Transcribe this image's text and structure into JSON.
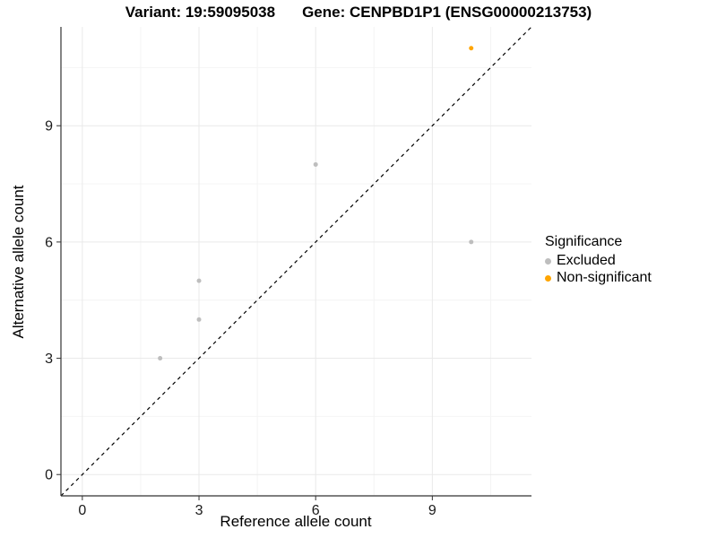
{
  "figure": {
    "title_left": "Variant: 19:59095038",
    "title_right": "Gene: CENPBD1P1 (ENSG00000213753)"
  },
  "chart_data": {
    "type": "scatter",
    "title": "Variant: 19:59095038   Gene: CENPBD1P1 (ENSG00000213753)",
    "xlabel": "Reference allele count",
    "ylabel": "Alternative allele count",
    "xlim": [
      -0.55,
      11.55
    ],
    "ylim": [
      -0.55,
      11.55
    ],
    "x_ticks": [
      0,
      3,
      6,
      9
    ],
    "y_ticks": [
      0,
      3,
      6,
      9
    ],
    "x_minor_ticks": [
      1.5,
      4.5,
      7.5,
      10.5
    ],
    "y_minor_ticks": [
      1.5,
      4.5,
      7.5,
      10.5
    ],
    "grid": true,
    "legend": {
      "title": "Significance",
      "position": "right"
    },
    "identity_line": {
      "equation": "y = x",
      "style": "dashed",
      "color": "#000000"
    },
    "series": [
      {
        "name": "Excluded",
        "color": "#BEBEBE",
        "points": [
          [
            2,
            3
          ],
          [
            3,
            4
          ],
          [
            3,
            5
          ],
          [
            6,
            8
          ],
          [
            10,
            6
          ]
        ]
      },
      {
        "name": "Non-significant",
        "color": "#FFA500",
        "points": [
          [
            10,
            11
          ]
        ]
      }
    ]
  },
  "style_colors": {
    "axis_line": "#333333",
    "tick_label": "#1a1a1a",
    "grid_major": "#E9E9E9",
    "grid_minor": "#F4F4F4",
    "background": "#ffffff"
  }
}
